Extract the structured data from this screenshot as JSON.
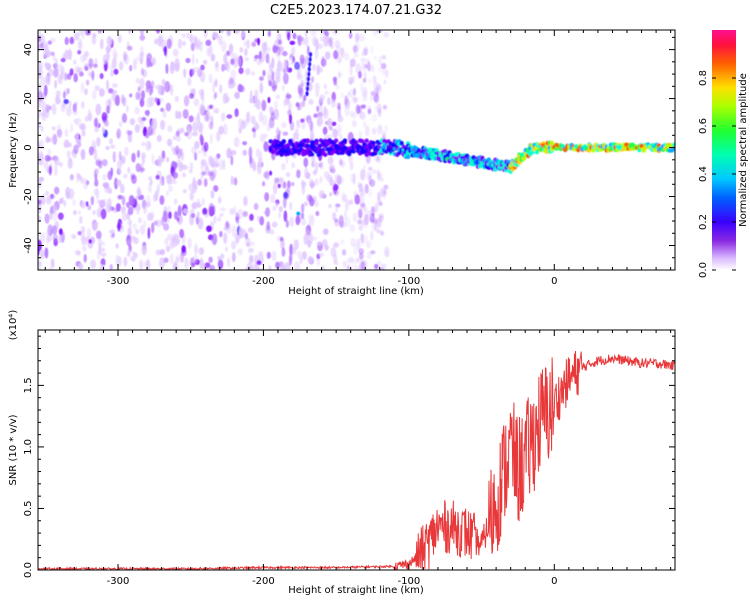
{
  "title": "C2E5.2023.174.07.21.G32",
  "colors": {
    "line": "#e8383a",
    "axis": "#000000",
    "colormap": [
      "#ffffff",
      "#e0c8ff",
      "#b070ff",
      "#7a00ff",
      "#1b00ff",
      "#00a8ff",
      "#00ffd0",
      "#20ff40",
      "#b8ff00",
      "#ffd000",
      "#ff5000",
      "#ff0090"
    ]
  },
  "chart_data": [
    {
      "type": "heatmap",
      "xlabel": "Height of straight line (km)",
      "ylabel": "Frequency (Hz)",
      "xlim": [
        -355,
        83
      ],
      "ylim": [
        -50,
        48
      ],
      "xticks": [
        -300,
        -200,
        -100,
        0
      ],
      "yticks": [
        -40,
        -20,
        0,
        20,
        40
      ],
      "colorbar": {
        "label": "Normalized spectral amplitude",
        "range": [
          0,
          1
        ],
        "ticks": [
          "0.0",
          "0.2",
          "0.4",
          "0.6",
          "0.8"
        ]
      },
      "regions": [
        {
          "x": [
            -355,
            -120
          ],
          "y": [
            -50,
            48
          ],
          "description": "scattered noise (amplitude ~0.0-0.2)"
        },
        {
          "x": [
            -190,
            83
          ],
          "y": [
            -8,
            8
          ],
          "description": "main signal track near 0 Hz, bending to about -10 Hz near -40 km"
        },
        {
          "x": [
            -40,
            83
          ],
          "y": [
            -3,
            3
          ],
          "description": "strong signal (amplitude 0.4-1.0)"
        }
      ]
    },
    {
      "type": "line",
      "xlabel": "Height of straight line (km)",
      "ylabel": "SNR (10 * v/v)",
      "ymultiplier": "(x10⁴)",
      "xlim": [
        -355,
        83
      ],
      "ylim": [
        0,
        1.95
      ],
      "xticks": [
        -300,
        -200,
        -100,
        0
      ],
      "yticks": [
        "0.0",
        "0.5",
        "1.0",
        "1.5"
      ],
      "series": [
        {
          "x": [
            -355,
            -300,
            -250,
            -200,
            -150,
            -110,
            -100,
            -90,
            -80,
            -70,
            -60,
            -50,
            -40,
            -30,
            -25,
            -20,
            -10,
            0,
            10,
            20,
            30,
            40,
            50,
            60,
            70,
            83
          ],
          "y": [
            0.01,
            0.01,
            0.01,
            0.02,
            0.02,
            0.03,
            0.05,
            0.15,
            0.35,
            0.35,
            0.3,
            0.2,
            0.55,
            1.0,
            0.8,
            0.9,
            1.2,
            1.35,
            1.55,
            1.65,
            1.7,
            1.72,
            1.7,
            1.68,
            1.68,
            1.66
          ]
        }
      ]
    }
  ]
}
